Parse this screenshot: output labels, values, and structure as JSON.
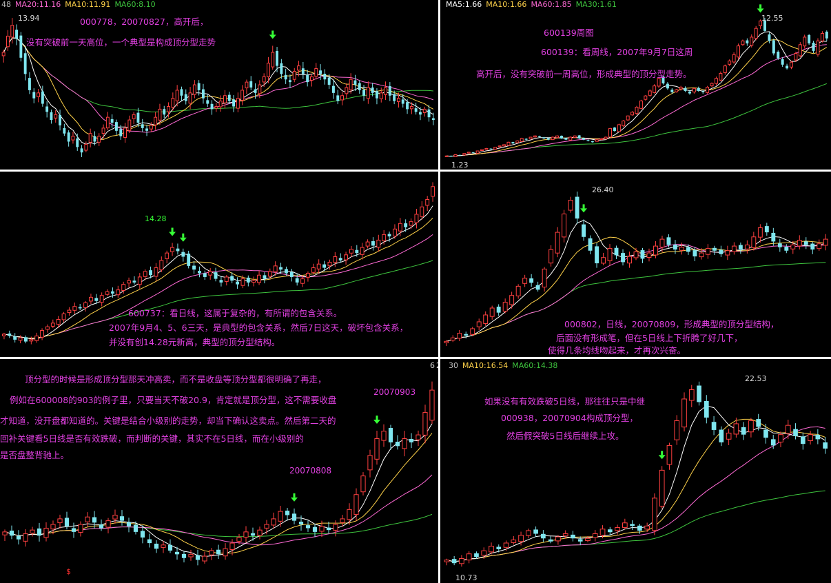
{
  "colors": {
    "up": "#ff4040",
    "down": "#7fe6ef",
    "ma5": "#ffffff",
    "ma10": "#ffd24a",
    "ma20": "#ff6ad5",
    "ma60": "#3ec43e",
    "ma30": "#3ec43e",
    "note": "#e040e0",
    "arrow": "#36ff36",
    "date": "#e040e0"
  },
  "panels": [
    {
      "ma_labels": [
        {
          "text": "48",
          "color": "#c0c0c0"
        },
        {
          "text": "MA20:11.16",
          "color": "#ff6ad5"
        },
        {
          "text": "MA10:11.91",
          "color": "#ffd24a"
        },
        {
          "text": "MA60:8.10",
          "color": "#3ec43e"
        }
      ],
      "notes": [
        "000778，20070827，高开后，",
        "没有突破前一天高位，一个典型是构成顶分型走势"
      ],
      "price_labels": [
        "13.94"
      ],
      "dates": []
    },
    {
      "ma_labels": [
        {
          "text": "MA5:1.66",
          "color": "#ffffff"
        },
        {
          "text": "MA10:1.66",
          "color": "#ffd24a"
        },
        {
          "text": "MA60:1.85",
          "color": "#ff6ad5"
        },
        {
          "text": "MA30:1.61",
          "color": "#3ec43e"
        }
      ],
      "notes": [
        "600139周图",
        "600139：看周线，2007年9月7日这周",
        "高开后，没有突破前一周高位，形成典型的顶分型走势。"
      ],
      "price_labels": [
        "12.55",
        "1.23"
      ],
      "dates": []
    },
    {
      "ma_labels": [],
      "notes": [
        "600737：看日线，这属于复杂的，有所谓的包含关系。",
        "2007年9月4、5、6三天，是典型的包含关系，然后7日这天，破坏包含关系，",
        "并没有创14.28元新高，典型的顶分型结构。"
      ],
      "price_labels": [
        "14.28"
      ],
      "dates": []
    },
    {
      "ma_labels": [],
      "notes": [
        "000802，日线，20070809，形成典型的顶分型结构，",
        "后面没有形成笔，但在5日线上下折腾了好几下，",
        "使得几条均线吻起来，才再次兴奋。"
      ],
      "price_labels": [
        "26.40"
      ],
      "dates": []
    },
    {
      "ma_labels": [],
      "notes": [
        "顶分型的时候是形成顶分型那天冲高卖，而不是收盘等顶分型都很明确了再走，",
        "例如在600008的903的例子里，只要当天不破20.9，肯定就是顶分型，这不需要收盘",
        "才知道，没开盘都知道的。关键是结合小级别的走势，却当下确认这卖点。然后第二天的",
        "回补关键看5日线是否有效跌破，而判断的关键，其实不在5日线，而在小级别的",
        "是否盘整背驰上。"
      ],
      "price_labels": [
        "6",
        "2",
        "$"
      ],
      "dates": [
        "20070808",
        "20070903"
      ]
    },
    {
      "ma_labels": [
        {
          "text": "30",
          "color": "#c0c0c0"
        },
        {
          "text": "MA10:16.54",
          "color": "#ffd24a"
        },
        {
          "text": "MA60:14.38",
          "color": "#3ec43e"
        }
      ],
      "notes": [
        "如果没有有效跌破5日线，那往往只是中继",
        "000938，20070904构成顶分型，",
        "然后假突破5日线后继续上攻。"
      ],
      "price_labels": [
        "22.53",
        "10.73"
      ],
      "dates": []
    }
  ],
  "chart_data": [
    {
      "type": "candlestick",
      "stock": "000778",
      "title": "000778，20070827，高开后，",
      "annotations": [
        "没有突破前一天高位，一个典型是构成顶分型走势"
      ],
      "high_label": 13.94,
      "ma": {
        "MA20": 11.16,
        "MA10": 11.91,
        "MA60": 8.1
      },
      "closes": [
        12.6,
        13.2,
        13.6,
        13.1,
        12.4,
        11.8,
        11.2,
        10.9,
        11.1,
        10.7,
        10.4,
        10.1,
        10.3,
        9.9,
        9.6,
        9.3,
        9.5,
        9.1,
        8.9,
        9.2,
        9.6,
        9.3,
        9.5,
        9.8,
        10.2,
        10.0,
        9.7,
        9.5,
        9.8,
        10.1,
        10.3,
        10.0,
        9.8,
        9.7,
        9.9,
        10.2,
        10.5,
        10.3,
        10.6,
        10.9,
        11.2,
        11.0,
        10.8,
        11.1,
        11.4,
        11.2,
        10.9,
        10.7,
        10.5,
        10.6,
        10.8,
        11.0,
        10.8,
        10.6,
        10.9,
        11.2,
        11.5,
        11.3,
        11.1,
        11.4,
        11.7,
        12.2,
        12.6,
        12.1,
        11.8,
        11.6,
        11.5,
        11.9,
        12.1,
        11.8,
        11.5,
        11.7,
        12.0,
        11.8,
        11.6,
        11.4,
        11.1,
        10.8,
        11.0,
        11.3,
        11.6,
        11.4,
        11.2,
        11.0,
        11.3,
        11.1,
        10.9,
        11.1,
        11.3,
        11.0,
        10.8,
        10.9,
        10.7,
        10.5,
        10.6,
        10.4,
        10.3,
        10.5,
        10.2,
        10.1
      ]
    },
    {
      "type": "candlestick",
      "stock": "600139",
      "period": "weekly",
      "title": "600139周图",
      "annotations": [
        "600139：看周线，2007年9月7日这周",
        "高开后，没有突破前一周高位，形成典型的顶分型走势。"
      ],
      "high_label": 12.55,
      "low_label": 1.23,
      "ma": {
        "MA5": 1.66,
        "MA10": 1.66,
        "MA60": 1.85,
        "MA30": 1.61
      },
      "closes": [
        1.4,
        1.35,
        1.5,
        1.45,
        1.6,
        1.7,
        1.65,
        1.8,
        1.9,
        2.0,
        1.95,
        2.1,
        2.2,
        2.3,
        2.5,
        2.4,
        2.6,
        2.8,
        2.7,
        2.9,
        3.0,
        2.9,
        2.8,
        2.7,
        2.9,
        3.0,
        2.8,
        2.7,
        2.9,
        3.0,
        2.8,
        2.7,
        2.6,
        2.5,
        2.7,
        2.8,
        2.9,
        3.6,
        3.4,
        3.9,
        4.2,
        4.6,
        4.9,
        5.3,
        5.8,
        6.2,
        6.6,
        7.0,
        7.6,
        7.2,
        6.8,
        6.5,
        6.7,
        6.9,
        6.6,
        6.4,
        6.8,
        6.6,
        6.5,
        6.9,
        7.2,
        7.6,
        8.0,
        8.6,
        9.0,
        9.5,
        10.2,
        10.6,
        10.4,
        10.9,
        11.6,
        12.2,
        11.4,
        10.6,
        9.6,
        9.2,
        8.7,
        8.4,
        8.9,
        9.6,
        10.3,
        10.9,
        10.4,
        9.8,
        10.6,
        11.2,
        10.8
      ]
    },
    {
      "type": "candlestick",
      "stock": "600737",
      "title": "600737：看日线，这属于复杂的，有所谓的包含关系。",
      "annotations": [
        "2007年9月4、5、6三天，是典型的包含关系，然后7日这天，破坏包含关系，",
        "并没有创14.28元新高，典型的顶分型结构。"
      ],
      "high_label": 14.28,
      "closes": [
        9.2,
        9.1,
        8.9,
        9.0,
        8.8,
        8.9,
        9.1,
        9.4,
        9.6,
        9.8,
        10.0,
        10.3,
        10.5,
        10.7,
        10.6,
        10.9,
        11.2,
        11.0,
        11.3,
        11.5,
        11.4,
        11.6,
        11.9,
        12.1,
        12.0,
        12.3,
        12.6,
        12.4,
        12.8,
        13.2,
        13.6,
        13.9,
        13.7,
        13.4,
        12.9,
        12.7,
        12.5,
        12.3,
        12.6,
        12.2,
        12.0,
        12.3,
        12.1,
        11.9,
        12.2,
        12.0,
        12.1,
        12.4,
        12.2,
        12.6,
        12.9,
        12.7,
        12.5,
        12.3,
        12.0,
        12.2,
        12.5,
        12.8,
        13.0,
        12.8,
        13.1,
        13.4,
        13.2,
        13.5,
        13.8,
        13.6,
        13.9,
        14.2,
        14.0,
        14.3,
        14.6,
        14.5,
        14.9,
        15.2,
        15.0,
        15.3,
        15.7,
        16.1,
        16.5,
        17.2
      ]
    },
    {
      "type": "candlestick",
      "stock": "000802",
      "title": "000802，日线，20070809，形成典型的顶分型结构，",
      "annotations": [
        "后面没有形成笔，但在5日线上下折腾了好几下，",
        "使得几条均线吻起来，才再次兴奋。"
      ],
      "high_label": 26.4,
      "closes": [
        13.5,
        13.8,
        14.2,
        14.0,
        14.6,
        15.2,
        15.8,
        16.4,
        16.0,
        16.9,
        17.5,
        18.3,
        19.0,
        18.6,
        18.0,
        19.8,
        21.5,
        23.0,
        24.6,
        25.8,
        24.2,
        22.6,
        21.4,
        20.3,
        20.8,
        21.6,
        21.0,
        20.4,
        20.9,
        21.3,
        20.7,
        21.2,
        21.8,
        22.4,
        21.9,
        21.5,
        21.7,
        21.3,
        20.9,
        21.2,
        21.6,
        21.4,
        21.1,
        21.4,
        21.8,
        21.5,
        21.9,
        22.6,
        23.4,
        23.0,
        22.2,
        21.7,
        21.4,
        21.9,
        22.3,
        21.9,
        21.5,
        22.0,
        22.4
      ]
    },
    {
      "type": "candlestick",
      "stock": "600008",
      "title": "顶分型的时候是形成顶分型那天冲高卖，而不是收盘等顶分型都很明确了再走，",
      "annotations": [
        "例如在600008的903的例子里，只要当天不破20.9，肯定就是顶分型，这不需要收盘",
        "才知道，没开盘都知道的。关键是结合小级别的走势，却当下确认这卖点。然后第二天的",
        "回补关键看5日线是否有效跌破，而判断的关键，其实不在5日线，而在小级别的",
        "是否盘整背驰上。"
      ],
      "dates": [
        "20070808",
        "20070903"
      ],
      "high_label": "62",
      "low_label": "$",
      "closes": [
        16.2,
        16.0,
        15.8,
        16.1,
        16.3,
        16.0,
        16.4,
        16.6,
        16.9,
        16.5,
        16.2,
        16.6,
        17.0,
        16.7,
        16.4,
        16.8,
        17.1,
        16.8,
        16.5,
        16.2,
        15.9,
        15.6,
        15.3,
        15.5,
        15.2,
        15.0,
        14.8,
        15.0,
        14.7,
        14.9,
        15.2,
        15.0,
        15.3,
        15.6,
        15.9,
        16.2,
        16.0,
        16.3,
        16.6,
        16.9,
        17.3,
        17.1,
        16.8,
        16.6,
        16.4,
        16.2,
        16.5,
        16.3,
        16.6,
        16.9,
        17.4,
        18.2,
        19.2,
        20.3,
        21.2,
        21.6,
        21.0,
        20.8,
        21.2,
        21.0,
        21.4,
        22.6,
        23.8
      ]
    },
    {
      "type": "candlestick",
      "stock": "000938",
      "title": "如果没有有效跌破5日线，那往往只是中继",
      "annotations": [
        "000938，20070904构成顶分型，",
        "然后假突破5日线后继续上攻。"
      ],
      "high_label": 22.53,
      "low_label": 10.73,
      "ma": {
        "MA10": 16.54,
        "MA60": 14.38
      },
      "closes": [
        11.2,
        11.0,
        11.3,
        11.6,
        11.4,
        11.8,
        12.1,
        11.9,
        12.3,
        12.5,
        12.8,
        13.1,
        12.9,
        12.6,
        12.4,
        12.7,
        12.9,
        12.6,
        12.4,
        12.6,
        12.9,
        13.2,
        13.0,
        13.3,
        13.6,
        13.4,
        13.1,
        13.4,
        15.2,
        17.0,
        18.6,
        20.2,
        21.6,
        22.2,
        21.4,
        20.4,
        19.6,
        18.8,
        19.4,
        20.0,
        19.3,
        20.2,
        19.8,
        19.1,
        18.6,
        19.3,
        19.9,
        19.2,
        18.7,
        19.3,
        19.0,
        18.4
      ]
    }
  ]
}
